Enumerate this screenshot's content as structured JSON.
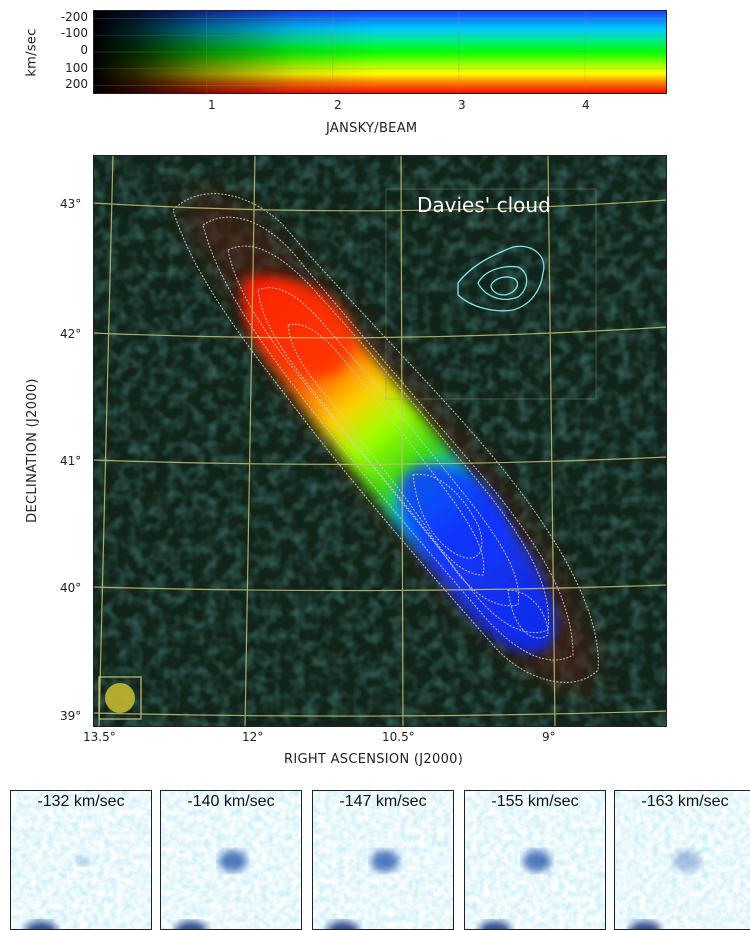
{
  "colorbar": {
    "ylabel": "km/sec",
    "xlabel": "JANSKY/BEAM",
    "yticks": [
      "-200",
      "-100",
      "0",
      "100",
      "200"
    ],
    "xticks": [
      "1",
      "2",
      "3",
      "4"
    ],
    "velocity_range": [
      -250,
      250
    ],
    "intensity_range": [
      0.1,
      4.65
    ],
    "colors_by_velocity": {
      "-250": "#001080",
      "-200": "#0000ff",
      "-100": "#00c8ff",
      "0": "#00ff00",
      "100": "#ffff00",
      "200": "#ff0000",
      "250": "#800000"
    }
  },
  "main_map": {
    "xlabel": "RIGHT ASCENSION (J2000)",
    "ylabel": "DECLINATION (J2000)",
    "xticks": [
      "13.5°",
      "12°",
      "10.5°",
      "9°"
    ],
    "yticks": [
      "43°",
      "42°",
      "41°",
      "40°",
      "39°"
    ],
    "annotation": "Davies' cloud",
    "contour_color": "#cccccc",
    "cloud_contour_color": "#7fe3e3",
    "grid_color": "#c8c070"
  },
  "chart_data": [
    {
      "type": "heatmap",
      "title": "",
      "xlabel": "JANSKY/BEAM",
      "ylabel": "km/sec",
      "xlim": [
        0.1,
        4.65
      ],
      "ylim": [
        -250,
        250
      ],
      "x_ticks": [
        1,
        2,
        3,
        4
      ],
      "y_ticks": [
        -200,
        -100,
        0,
        100,
        200
      ]
    },
    {
      "type": "heatmap",
      "title": "",
      "xlabel": "RIGHT ASCENSION (J2000)",
      "ylabel": "DECLINATION (J2000)",
      "x_ticks": [
        13.5,
        12,
        10.5,
        9
      ],
      "y_ticks": [
        43,
        42,
        41,
        40,
        39
      ],
      "velocity_regions": [
        {
          "color": "red",
          "velocity_km_s": 200
        },
        {
          "color": "yellow-green",
          "velocity_km_s": 0
        },
        {
          "color": "blue",
          "velocity_km_s": -200
        }
      ],
      "annotation": "Davies' cloud"
    }
  ],
  "channel_maps": [
    {
      "label": "-132 km/sec",
      "velocity": -132
    },
    {
      "label": "-140 km/sec",
      "velocity": -140
    },
    {
      "label": "-147 km/sec",
      "velocity": -147
    },
    {
      "label": "-155 km/sec",
      "velocity": -155
    },
    {
      "label": "-163 km/sec",
      "velocity": -163
    }
  ]
}
